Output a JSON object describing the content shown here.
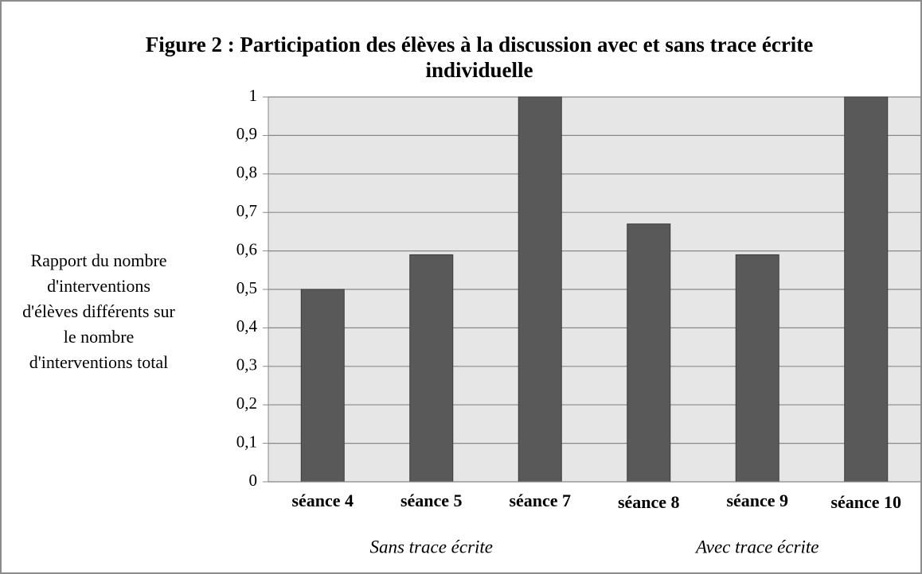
{
  "chart_data": {
    "type": "bar",
    "title": "Figure 2 : Participation des élèves à la discussion avec et sans trace écrite individuelle",
    "ylabel": "Rapport du nombre d'interventions d'élèves différents sur le nombre d'interventions total",
    "categories": [
      "séance 4",
      "séance 5",
      "séance 7",
      "séance 8",
      "séance 9",
      "séance 10"
    ],
    "values": [
      0.5,
      0.59,
      1,
      0.67,
      0.59,
      1
    ],
    "color": "#595959",
    "ylim": [
      0,
      1
    ],
    "yticks": [
      0,
      {
        "value": 0.1,
        "label": "0,1"
      },
      {
        "value": 0.2,
        "label": "0,2"
      },
      {
        "value": 0.3,
        "label": "0,3"
      },
      {
        "value": 0.4,
        "label": "0,4"
      },
      {
        "value": 0.5,
        "label": "0,5"
      },
      {
        "value": 0.6,
        "label": "0,6"
      },
      {
        "value": 0.7,
        "label": "0,7"
      },
      {
        "value": 0.8,
        "label": "0,8"
      },
      {
        "value": 0.9,
        "label": "0,9"
      },
      1
    ],
    "grid": true,
    "annotations": [
      "Sans trace écrite",
      "Avec trace écrite"
    ]
  }
}
